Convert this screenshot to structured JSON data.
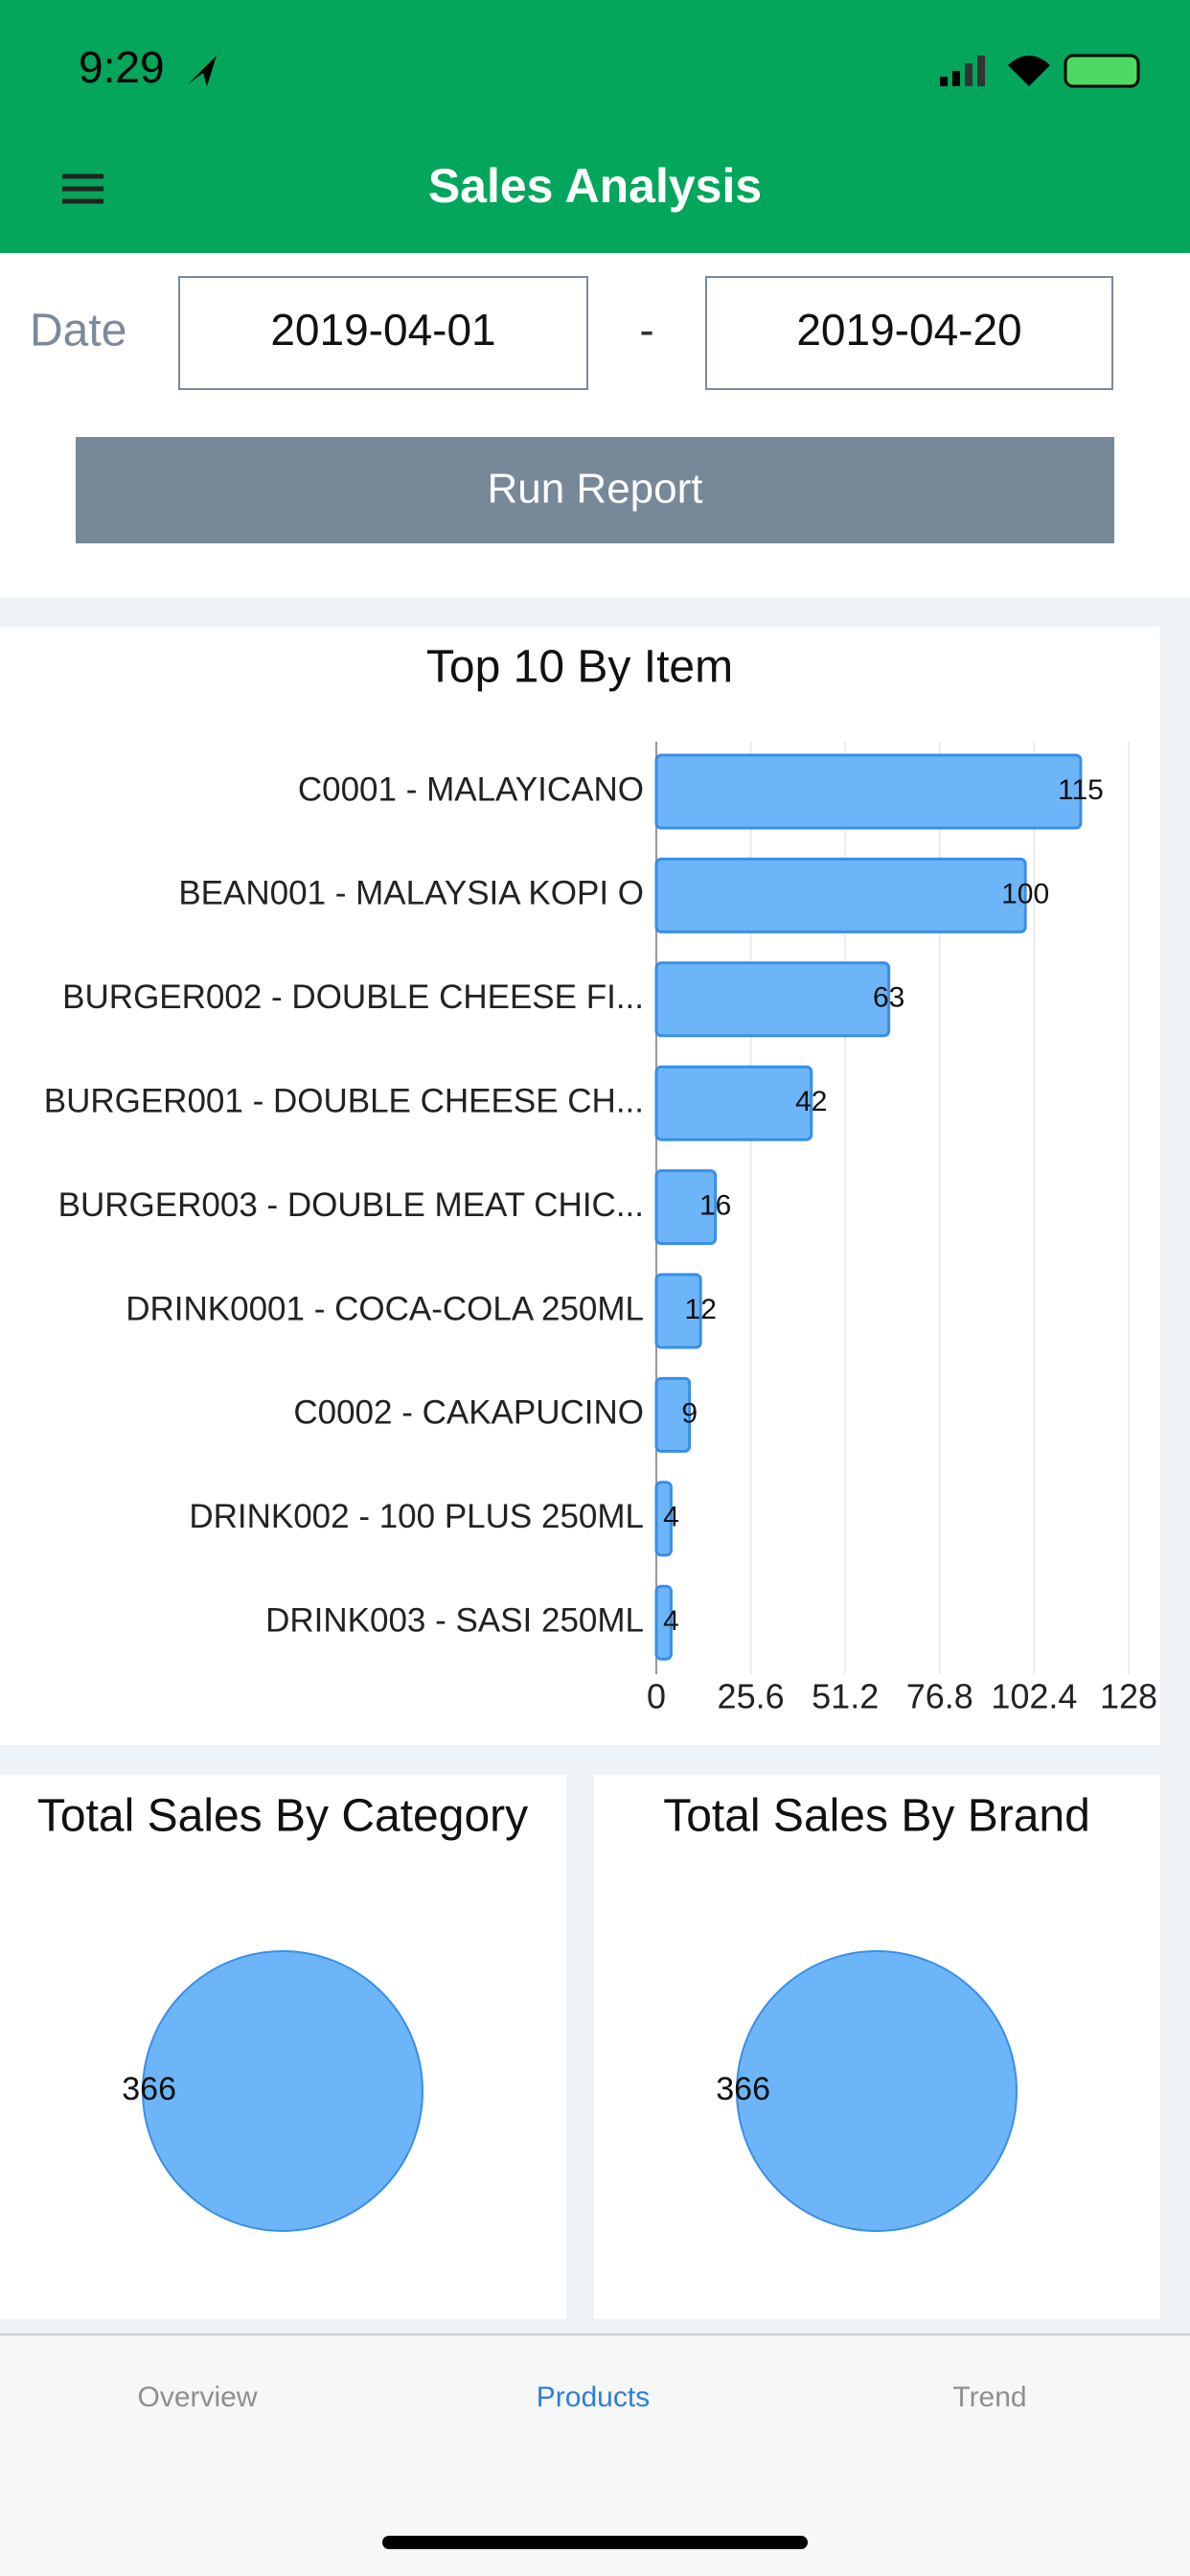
{
  "status_bar": {
    "time": "9:29"
  },
  "header": {
    "title": "Sales Analysis"
  },
  "date_filter": {
    "label": "Date",
    "from": "2019-04-01",
    "separator": "-",
    "to": "2019-04-20"
  },
  "button": {
    "label": "Run Report"
  },
  "chart_data": [
    {
      "type": "hbar",
      "title": "Top 10 By Item",
      "categories": [
        "C0001 - MALAYICANO",
        "BEAN001 - MALAYSIA KOPI O",
        "BURGER002 - DOUBLE CHEESE FI...",
        "BURGER001 - DOUBLE CHEESE CH...",
        "BURGER003 - DOUBLE MEAT CHIC...",
        "DRINK0001 - COCA-COLA 250ML",
        "C0002 - CAKAPUCINO",
        "DRINK002 - 100 PLUS 250ML",
        "DRINK003 - SASI 250ML"
      ],
      "values": [
        115,
        100,
        63,
        42,
        16,
        12,
        9,
        4,
        4
      ],
      "color": "#6db5f9",
      "xlim": [
        0,
        128
      ],
      "xticks": [
        0,
        25.6,
        51.2,
        76.8,
        102.4,
        128
      ],
      "grid": true
    },
    {
      "type": "pie",
      "title": "Total Sales By Category",
      "values": [
        366
      ],
      "color": "#6db5f9"
    },
    {
      "type": "pie",
      "title": "Total Sales By Brand",
      "values": [
        366
      ],
      "color": "#6db5f9"
    }
  ],
  "tabs": [
    "Overview",
    "Products",
    "Trend"
  ]
}
